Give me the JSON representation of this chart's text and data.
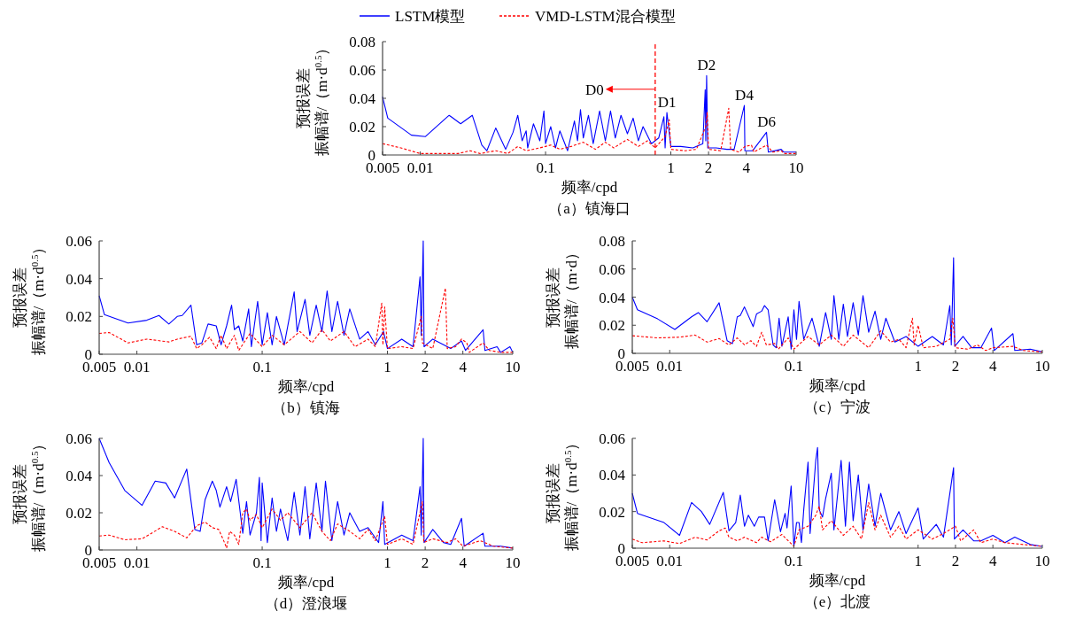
{
  "chart_data": [
    {
      "type": "line",
      "title": "（a）镇海口",
      "xlabel": "频率/cpd",
      "ylabel": "预报误差振幅谱/（m·d$^{0.5}$）",
      "log": "x",
      "legend": "top",
      "marker": "none",
      "xlim": [
        0.005,
        10
      ],
      "xticks": [
        0.005,
        0.01,
        0.1,
        1,
        2,
        4,
        10
      ],
      "ylim": [
        0,
        0.08
      ],
      "yticks": [
        0,
        0.02,
        0.04,
        0.06,
        0.08
      ],
      "ref_lines": [
        {
          "axis": "x",
          "value": 0.75,
          "label": "D0",
          "color": "#ff0000",
          "line_style": "dashed"
        }
      ],
      "annotations": [
        {
          "text": "D1",
          "x": 0.93,
          "y": 0.03
        },
        {
          "text": "D2",
          "x": 1.93,
          "y": 0.056
        },
        {
          "text": "D4",
          "x": 3.86,
          "y": 0.035
        },
        {
          "text": "D6",
          "x": 5.8,
          "y": 0.016
        }
      ],
      "series": [
        {
          "name": "LSTM模型",
          "color": "#0000ff",
          "line_style": "solid",
          "x": [
            0.005,
            0.0055,
            0.0085,
            0.011,
            0.017,
            0.021,
            0.026,
            0.031,
            0.034,
            0.04,
            0.048,
            0.055,
            0.06,
            0.065,
            0.07,
            0.072,
            0.08,
            0.09,
            0.097,
            0.1,
            0.11,
            0.12,
            0.13,
            0.15,
            0.17,
            0.18,
            0.19,
            0.2,
            0.22,
            0.24,
            0.27,
            0.3,
            0.33,
            0.36,
            0.4,
            0.45,
            0.5,
            0.55,
            0.6,
            0.7,
            0.8,
            0.88,
            0.9,
            0.93,
            1.0,
            1.2,
            1.5,
            1.8,
            1.88,
            1.9,
            1.93,
            1.97,
            2.3,
            2.8,
            3.2,
            3.86,
            3.9,
            4.5,
            5.8,
            6,
            7.6,
            8,
            10
          ],
          "values": [
            0.041,
            0.026,
            0.014,
            0.013,
            0.028,
            0.022,
            0.028,
            0.007,
            0.003,
            0.019,
            0.004,
            0.016,
            0.028,
            0.01,
            0.017,
            0.005,
            0.022,
            0.01,
            0.031,
            0.008,
            0.02,
            0.005,
            0.017,
            0.003,
            0.024,
            0.01,
            0.032,
            0.012,
            0.028,
            0.008,
            0.031,
            0.01,
            0.031,
            0.012,
            0.028,
            0.015,
            0.026,
            0.01,
            0.02,
            0.008,
            0.012,
            0.027,
            0.005,
            0.03,
            0.006,
            0.006,
            0.005,
            0.008,
            0.046,
            0.01,
            0.056,
            0.005,
            0.005,
            0.004,
            0.004,
            0.035,
            0.003,
            0.003,
            0.016,
            0.002,
            0.004,
            0.002,
            0.002
          ]
        },
        {
          "name": "VMD-LSTM混合模型",
          "color": "#ff0000",
          "line_style": "dashed",
          "x": [
            0.005,
            0.007,
            0.01,
            0.02,
            0.025,
            0.03,
            0.04,
            0.05,
            0.06,
            0.07,
            0.09,
            0.11,
            0.13,
            0.16,
            0.2,
            0.25,
            0.3,
            0.35,
            0.45,
            0.55,
            0.65,
            0.75,
            0.9,
            0.97,
            1.0,
            1.3,
            1.6,
            1.9,
            1.95,
            2.0,
            2.5,
            2.9,
            3.0,
            3.5,
            3.9,
            4.4,
            4.6,
            5.8,
            6.5,
            7.6,
            8,
            10
          ],
          "values": [
            0.008,
            0.005,
            0.001,
            0.001,
            0.003,
            0.001,
            0.003,
            0.001,
            0.006,
            0.003,
            0.005,
            0.007,
            0.004,
            0.006,
            0.009,
            0.004,
            0.009,
            0.005,
            0.011,
            0.006,
            0.01,
            0.005,
            0.013,
            0.025,
            0.004,
            0.003,
            0.004,
            0.02,
            0.03,
            0.004,
            0.003,
            0.033,
            0.004,
            0.002,
            0.006,
            0.007,
            0.002,
            0.007,
            0.002,
            0.003,
            0.001,
            0.001
          ]
        }
      ]
    },
    {
      "type": "line",
      "title": "（b）镇海",
      "xlabel": "频率/cpd",
      "ylabel": "预报误差振幅谱/（m·d$^{0.5}$）",
      "log": "x",
      "marker": "none",
      "xlim": [
        0.005,
        10
      ],
      "xticks": [
        0.005,
        0.01,
        0.1,
        1,
        2,
        4,
        10
      ],
      "ylim": [
        0,
        0.06
      ],
      "yticks": [
        0,
        0.02,
        0.04,
        0.06
      ],
      "series": [
        {
          "color": "#0000ff",
          "line_style": "solid",
          "x": [
            0.005,
            0.0055,
            0.0085,
            0.012,
            0.015,
            0.018,
            0.021,
            0.023,
            0.027,
            0.03,
            0.033,
            0.037,
            0.043,
            0.047,
            0.052,
            0.057,
            0.06,
            0.065,
            0.07,
            0.078,
            0.082,
            0.092,
            0.1,
            0.11,
            0.12,
            0.13,
            0.15,
            0.18,
            0.19,
            0.22,
            0.24,
            0.27,
            0.3,
            0.33,
            0.36,
            0.4,
            0.45,
            0.5,
            0.6,
            0.7,
            0.8,
            0.93,
            1.0,
            1.3,
            1.6,
            1.82,
            1.86,
            1.93,
            1.96,
            2.3,
            2.8,
            3.2,
            3.9,
            4.2,
            5.8,
            6,
            7.5,
            8,
            9.5,
            10
          ],
          "values": [
            0.031,
            0.021,
            0.0165,
            0.018,
            0.0205,
            0.016,
            0.02,
            0.0205,
            0.026,
            0.005,
            0.006,
            0.016,
            0.015,
            0.005,
            0.015,
            0.026,
            0.013,
            0.015,
            0.007,
            0.024,
            0.004,
            0.028,
            0.005,
            0.022,
            0.005,
            0.02,
            0.005,
            0.033,
            0.012,
            0.029,
            0.01,
            0.026,
            0.012,
            0.0335,
            0.012,
            0.028,
            0.01,
            0.024,
            0.008,
            0.012,
            0.005,
            0.012,
            0.003,
            0.008,
            0.004,
            0.041,
            0.01,
            0.06,
            0.004,
            0.008,
            0.005,
            0.003,
            0.007,
            0.002,
            0.013,
            0.002,
            0.004,
            0.001,
            0.004,
            0.001
          ]
        },
        {
          "color": "#ff0000",
          "line_style": "dashed",
          "x": [
            0.005,
            0.006,
            0.0085,
            0.012,
            0.018,
            0.021,
            0.027,
            0.03,
            0.033,
            0.038,
            0.043,
            0.047,
            0.052,
            0.06,
            0.065,
            0.08,
            0.1,
            0.12,
            0.15,
            0.2,
            0.25,
            0.3,
            0.35,
            0.45,
            0.55,
            0.7,
            0.8,
            0.9,
            0.92,
            0.95,
            1.0,
            1.3,
            1.6,
            1.86,
            1.9,
            2.3,
            2.9,
            3.0,
            3.5,
            3.9,
            4.3,
            4.5,
            5.8,
            6.5,
            8,
            10
          ],
          "values": [
            0.011,
            0.0115,
            0.006,
            0.008,
            0.0065,
            0.008,
            0.0095,
            0.003,
            0.005,
            0.009,
            0.003,
            0.01,
            0.003,
            0.01,
            0.002,
            0.011,
            0.004,
            0.01,
            0.005,
            0.012,
            0.006,
            0.013,
            0.007,
            0.012,
            0.004,
            0.008,
            0.004,
            0.027,
            0.005,
            0.025,
            0.003,
            0.004,
            0.003,
            0.02,
            0.006,
            0.003,
            0.035,
            0.003,
            0.004,
            0.008,
            0.006,
            0.001,
            0.006,
            0.002,
            0.001,
            0.001
          ]
        }
      ]
    },
    {
      "type": "line",
      "title": "（c）宁波",
      "xlabel": "频率/cpd",
      "ylabel": "预报误差振幅谱/（m·d）",
      "log": "x",
      "marker": "none",
      "xlim": [
        0.005,
        10
      ],
      "xticks": [
        0.005,
        0.01,
        0.1,
        1,
        2,
        4,
        10
      ],
      "ylim": [
        0,
        0.08
      ],
      "yticks": [
        0,
        0.02,
        0.04,
        0.06,
        0.08
      ],
      "series": [
        {
          "color": "#0000ff",
          "line_style": "solid",
          "x": [
            0.005,
            0.0055,
            0.008,
            0.011,
            0.015,
            0.017,
            0.02,
            0.025,
            0.029,
            0.032,
            0.035,
            0.037,
            0.04,
            0.047,
            0.05,
            0.055,
            0.058,
            0.062,
            0.068,
            0.072,
            0.076,
            0.08,
            0.09,
            0.095,
            0.1,
            0.105,
            0.11,
            0.12,
            0.14,
            0.16,
            0.18,
            0.2,
            0.21,
            0.23,
            0.25,
            0.27,
            0.3,
            0.33,
            0.36,
            0.4,
            0.45,
            0.5,
            0.55,
            0.65,
            0.8,
            1.0,
            1.3,
            1.6,
            1.8,
            1.85,
            1.93,
            1.97,
            2.3,
            2.7,
            3.2,
            3.9,
            4.1,
            5.8,
            6,
            8,
            10
          ],
          "values": [
            0.04,
            0.031,
            0.0245,
            0.017,
            0.026,
            0.029,
            0.0225,
            0.036,
            0.009,
            0.007,
            0.026,
            0.027,
            0.033,
            0.019,
            0.028,
            0.03,
            0.034,
            0.031,
            0.006,
            0.004,
            0.025,
            0.005,
            0.026,
            0.003,
            0.031,
            0.01,
            0.037,
            0.01,
            0.025,
            0.005,
            0.029,
            0.01,
            0.041,
            0.01,
            0.035,
            0.012,
            0.036,
            0.013,
            0.041,
            0.015,
            0.03,
            0.01,
            0.025,
            0.008,
            0.012,
            0.005,
            0.012,
            0.006,
            0.034,
            0.006,
            0.068,
            0.005,
            0.012,
            0.004,
            0.004,
            0.018,
            0.002,
            0.014,
            0.002,
            0.003,
            0.001
          ]
        },
        {
          "color": "#ff0000",
          "line_style": "dashed",
          "x": [
            0.005,
            0.008,
            0.012,
            0.016,
            0.02,
            0.025,
            0.03,
            0.035,
            0.04,
            0.045,
            0.05,
            0.055,
            0.06,
            0.07,
            0.075,
            0.09,
            0.1,
            0.13,
            0.16,
            0.2,
            0.25,
            0.3,
            0.4,
            0.5,
            0.6,
            0.7,
            0.8,
            0.9,
            0.93,
            1.0,
            1.1,
            1.4,
            1.8,
            1.9,
            2.0,
            2.5,
            3.0,
            3.5,
            4,
            5.8,
            7,
            10
          ],
          "values": [
            0.0125,
            0.011,
            0.0115,
            0.013,
            0.008,
            0.0105,
            0.006,
            0.011,
            0.006,
            0.009,
            0.005,
            0.015,
            0.006,
            0.007,
            0.003,
            0.011,
            0.003,
            0.012,
            0.006,
            0.013,
            0.005,
            0.013,
            0.004,
            0.016,
            0.008,
            0.01,
            0.004,
            0.025,
            0.006,
            0.02,
            0.004,
            0.005,
            0.01,
            0.025,
            0.004,
            0.003,
            0.006,
            0.002,
            0.004,
            0.005,
            0.002,
            0.001
          ]
        }
      ]
    },
    {
      "type": "line",
      "title": "（d）澄浪堰",
      "xlabel": "频率/cpd",
      "ylabel": "预报误差振幅谱/（m·d$^{0.5}$）",
      "log": "x",
      "marker": "none",
      "xlim": [
        0.005,
        10
      ],
      "xticks": [
        0.005,
        0.01,
        0.1,
        1,
        2,
        4,
        10
      ],
      "ylim": [
        0,
        0.06
      ],
      "yticks": [
        0,
        0.02,
        0.04,
        0.06
      ],
      "series": [
        {
          "color": "#0000ff",
          "line_style": "solid",
          "x": [
            0.005,
            0.006,
            0.008,
            0.011,
            0.014,
            0.017,
            0.02,
            0.025,
            0.029,
            0.032,
            0.035,
            0.04,
            0.043,
            0.046,
            0.052,
            0.056,
            0.062,
            0.07,
            0.075,
            0.08,
            0.09,
            0.095,
            0.098,
            0.1,
            0.11,
            0.12,
            0.13,
            0.14,
            0.16,
            0.18,
            0.2,
            0.22,
            0.24,
            0.27,
            0.3,
            0.32,
            0.36,
            0.4,
            0.45,
            0.5,
            0.6,
            0.7,
            0.85,
            0.92,
            0.95,
            1.3,
            1.6,
            1.82,
            1.86,
            1.93,
            1.96,
            2.3,
            2.8,
            3.2,
            3.9,
            4.1,
            5.8,
            6,
            8,
            10
          ],
          "values": [
            0.06,
            0.047,
            0.032,
            0.024,
            0.037,
            0.036,
            0.028,
            0.0435,
            0.011,
            0.01,
            0.027,
            0.037,
            0.032,
            0.023,
            0.034,
            0.026,
            0.038,
            0.009,
            0.026,
            0.008,
            0.02,
            0.039,
            0.005,
            0.036,
            0.004,
            0.028,
            0.01,
            0.022,
            0.005,
            0.031,
            0.008,
            0.034,
            0.006,
            0.036,
            0.01,
            0.037,
            0.005,
            0.026,
            0.008,
            0.02,
            0.01,
            0.012,
            0.004,
            0.026,
            0.003,
            0.008,
            0.005,
            0.034,
            0.008,
            0.06,
            0.004,
            0.011,
            0.004,
            0.003,
            0.017,
            0.002,
            0.009,
            0.002,
            0.002,
            0.001
          ]
        },
        {
          "color": "#ff0000",
          "line_style": "dashed",
          "x": [
            0.005,
            0.006,
            0.008,
            0.011,
            0.016,
            0.02,
            0.025,
            0.03,
            0.035,
            0.04,
            0.045,
            0.05,
            0.052,
            0.055,
            0.06,
            0.065,
            0.07,
            0.075,
            0.08,
            0.09,
            0.1,
            0.12,
            0.14,
            0.16,
            0.2,
            0.25,
            0.3,
            0.35,
            0.4,
            0.5,
            0.6,
            0.7,
            0.8,
            0.95,
            1.0,
            1.3,
            1.6,
            1.9,
            1.95,
            2.3,
            3.0,
            3.5,
            4,
            5.5,
            7,
            10
          ],
          "values": [
            0.0075,
            0.008,
            0.0055,
            0.006,
            0.0125,
            0.01,
            0.0065,
            0.013,
            0.015,
            0.012,
            0.011,
            0.004,
            0.001,
            0.01,
            0.008,
            0.003,
            0.02,
            0.022,
            0.016,
            0.019,
            0.012,
            0.022,
            0.016,
            0.02,
            0.012,
            0.02,
            0.01,
            0.005,
            0.014,
            0.01,
            0.006,
            0.011,
            0.005,
            0.018,
            0.003,
            0.006,
            0.003,
            0.026,
            0.004,
            0.006,
            0.004,
            0.006,
            0.002,
            0.005,
            0.002,
            0.001
          ]
        }
      ]
    },
    {
      "type": "line",
      "title": "（e）北渡",
      "xlabel": "频率/cpd",
      "ylabel": "预报误差振幅谱/（m·d$^{0.5}$）",
      "log": "x",
      "marker": "none",
      "xlim": [
        0.005,
        10
      ],
      "xticks": [
        0.005,
        0.01,
        0.1,
        1,
        2,
        4,
        10
      ],
      "ylim": [
        0,
        0.06
      ],
      "yticks": [
        0,
        0.02,
        0.04,
        0.06
      ],
      "series": [
        {
          "color": "#0000ff",
          "line_style": "solid",
          "x": [
            0.005,
            0.0055,
            0.009,
            0.012,
            0.015,
            0.018,
            0.021,
            0.027,
            0.03,
            0.034,
            0.037,
            0.04,
            0.043,
            0.048,
            0.052,
            0.058,
            0.062,
            0.07,
            0.078,
            0.085,
            0.088,
            0.095,
            0.1,
            0.105,
            0.11,
            0.115,
            0.12,
            0.13,
            0.135,
            0.15,
            0.155,
            0.16,
            0.17,
            0.18,
            0.2,
            0.21,
            0.24,
            0.26,
            0.28,
            0.3,
            0.33,
            0.36,
            0.4,
            0.45,
            0.5,
            0.6,
            0.7,
            0.8,
            1.0,
            1.1,
            1.4,
            1.6,
            1.93,
            1.96,
            2.3,
            2.8,
            3.2,
            4,
            5,
            6,
            8,
            10
          ],
          "values": [
            0.03,
            0.019,
            0.014,
            0.007,
            0.025,
            0.02,
            0.013,
            0.0305,
            0.0095,
            0.014,
            0.029,
            0.012,
            0.018,
            0.012,
            0.017,
            0.017,
            0.004,
            0.0265,
            0.009,
            0.019,
            0.011,
            0.034,
            0.001,
            0.014,
            0.014,
            0.003,
            0.021,
            0.047,
            0.008,
            0.048,
            0.055,
            0.021,
            0.017,
            0.027,
            0.041,
            0.01,
            0.048,
            0.012,
            0.047,
            0.015,
            0.04,
            0.01,
            0.035,
            0.012,
            0.03,
            0.01,
            0.02,
            0.008,
            0.022,
            0.005,
            0.013,
            0.006,
            0.044,
            0.005,
            0.01,
            0.004,
            0.004,
            0.007,
            0.003,
            0.006,
            0.002,
            0.001
          ]
        },
        {
          "color": "#ff0000",
          "line_style": "dashed",
          "x": [
            0.005,
            0.006,
            0.009,
            0.012,
            0.016,
            0.02,
            0.025,
            0.028,
            0.03,
            0.035,
            0.04,
            0.05,
            0.055,
            0.065,
            0.08,
            0.1,
            0.11,
            0.13,
            0.15,
            0.16,
            0.17,
            0.2,
            0.25,
            0.3,
            0.35,
            0.4,
            0.45,
            0.5,
            0.6,
            0.7,
            0.8,
            1.0,
            1.3,
            1.6,
            2.0,
            2.2,
            2.8,
            3.2,
            4,
            5,
            7,
            10
          ],
          "values": [
            0.005,
            0.003,
            0.004,
            0.0025,
            0.006,
            0.0045,
            0.0095,
            0.011,
            0.006,
            0.004,
            0.006,
            0.003,
            0.006,
            0.0035,
            0.0075,
            0.001,
            0.01,
            0.012,
            0.018,
            0.023,
            0.01,
            0.015,
            0.007,
            0.012,
            0.005,
            0.025,
            0.01,
            0.018,
            0.006,
            0.012,
            0.005,
            0.01,
            0.005,
            0.008,
            0.012,
            0.004,
            0.01,
            0.003,
            0.005,
            0.003,
            0.002,
            0.001
          ]
        }
      ]
    }
  ]
}
